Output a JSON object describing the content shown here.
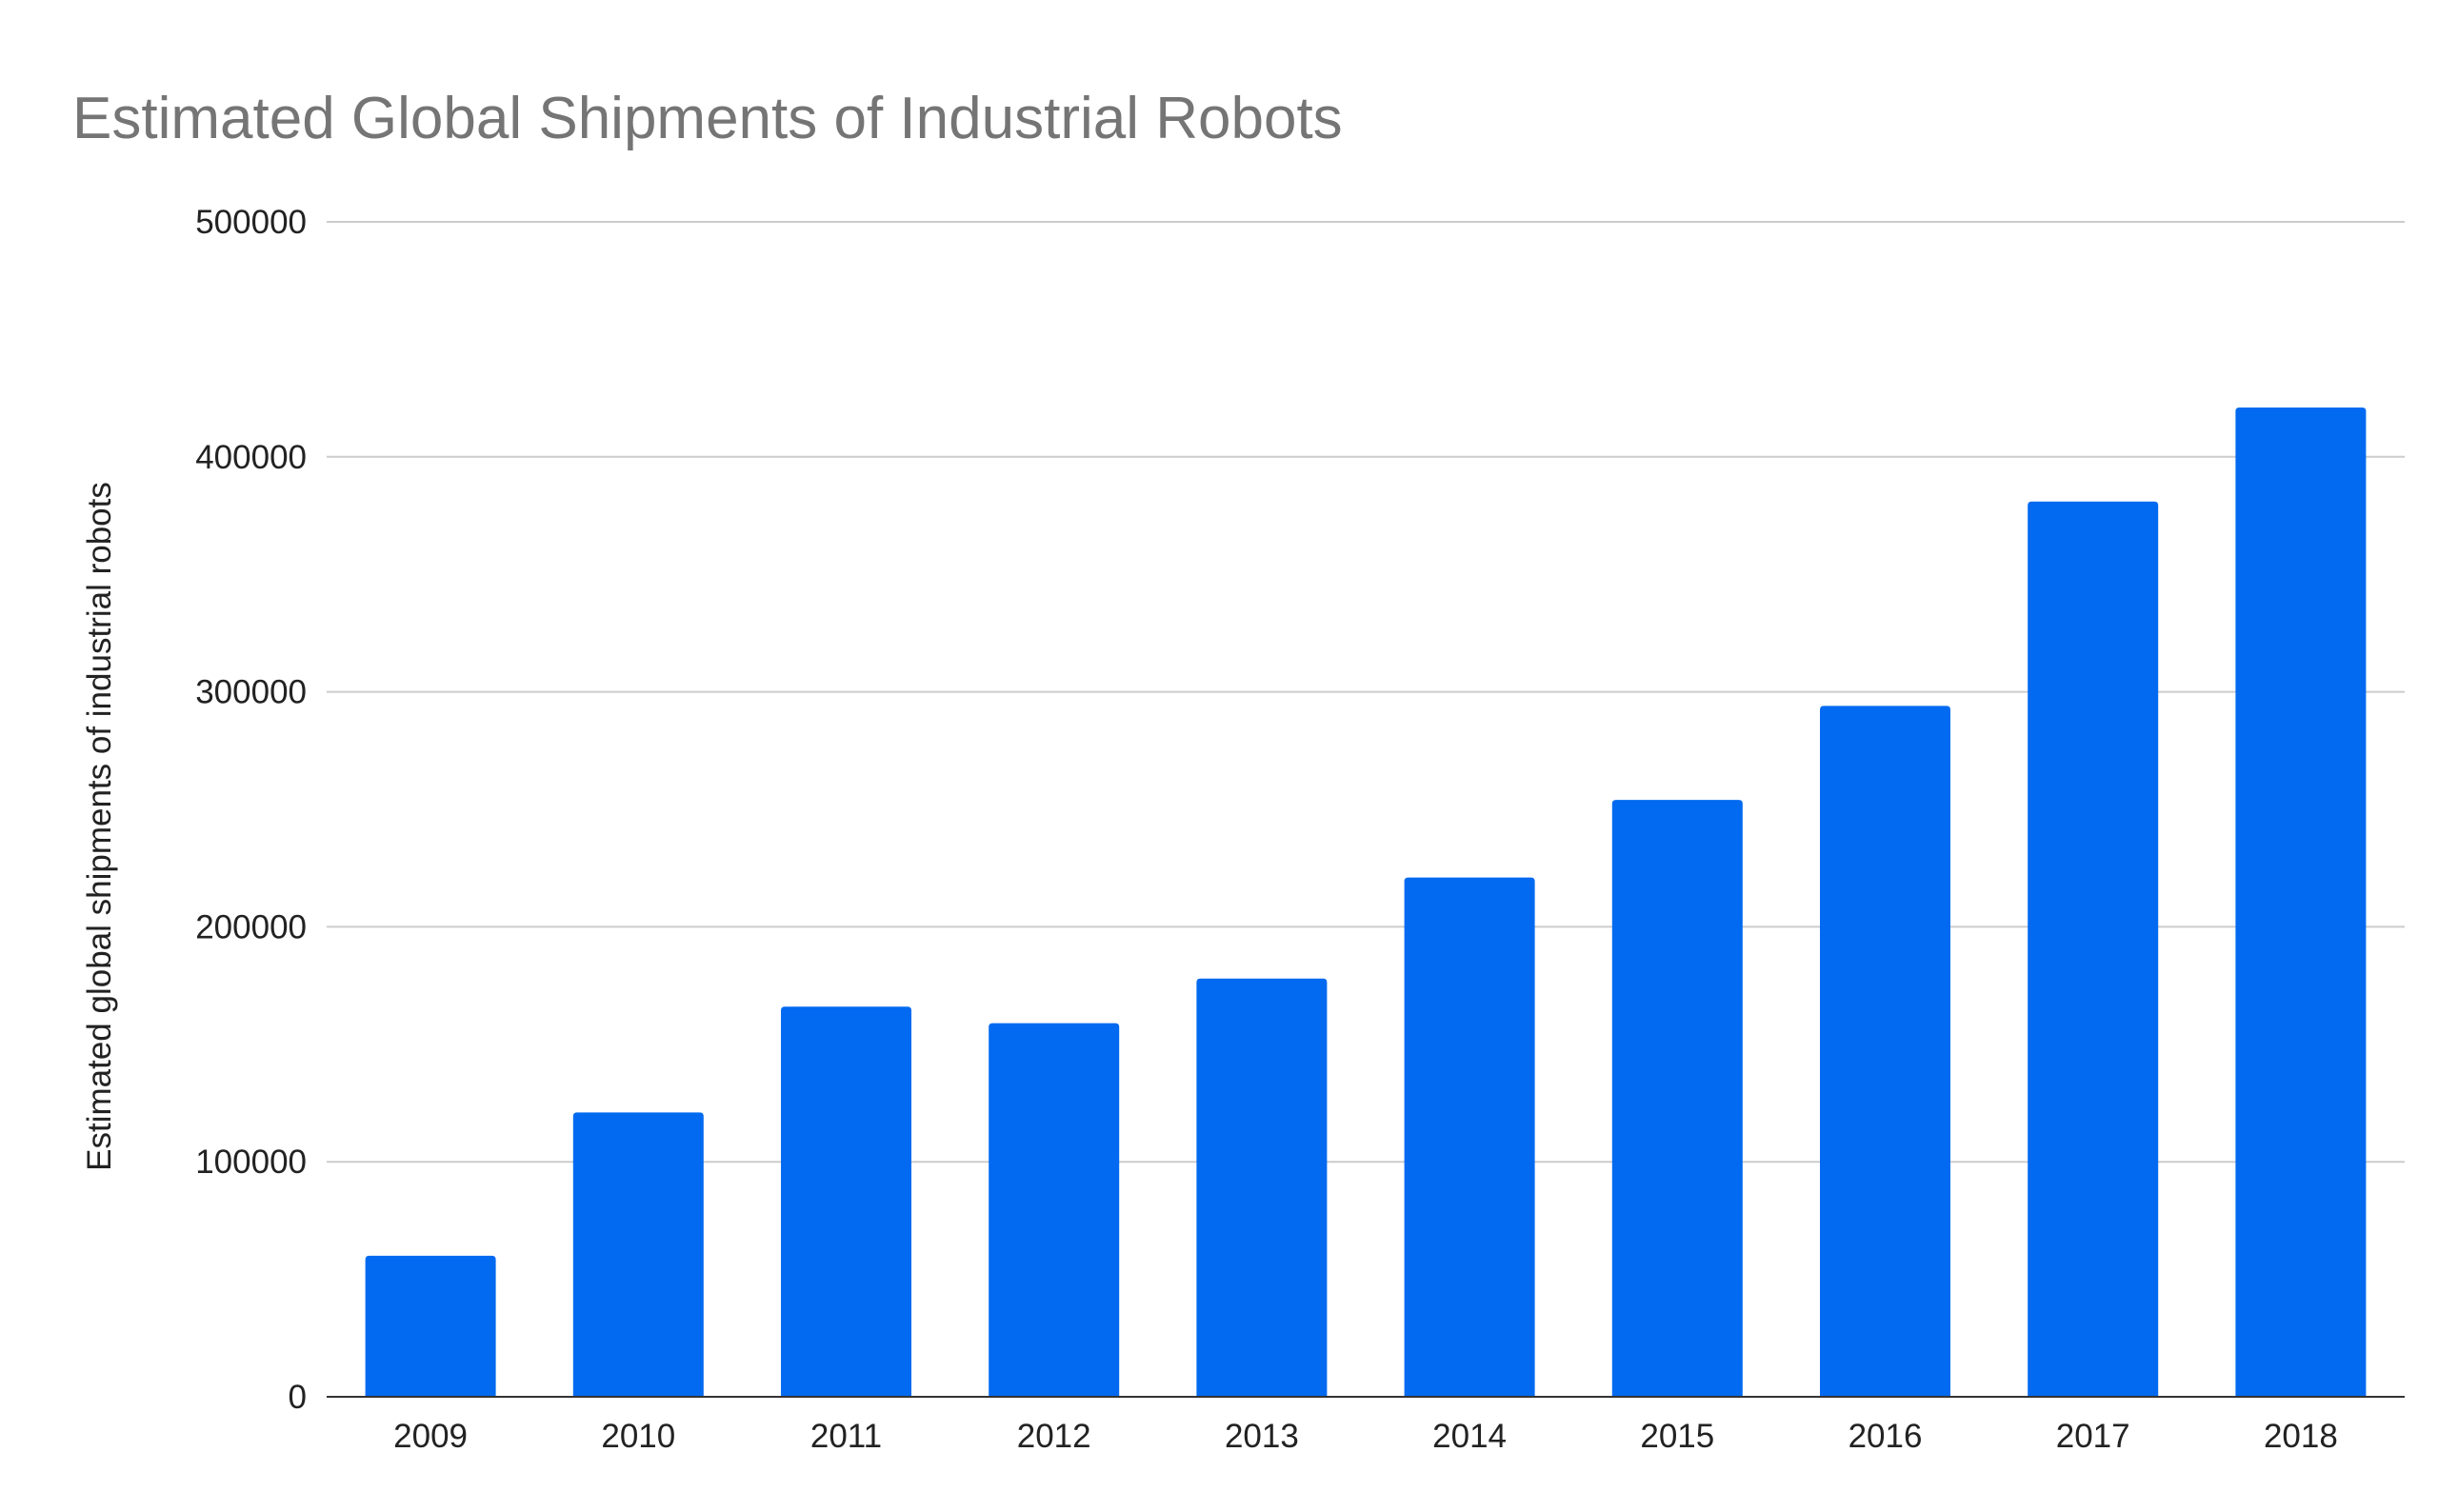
{
  "chart_data": {
    "type": "bar",
    "title": "Estimated Global Shipments of Industrial Robots",
    "xlabel": "",
    "ylabel": "Estimated global shipments of industrial robots",
    "categories": [
      "2009",
      "2010",
      "2011",
      "2012",
      "2013",
      "2014",
      "2015",
      "2016",
      "2017",
      "2018"
    ],
    "values": [
      60000,
      121000,
      166000,
      159000,
      178000,
      221000,
      254000,
      294000,
      381000,
      421000
    ],
    "ylim": [
      0,
      500000
    ],
    "yticks": [
      0,
      100000,
      200000,
      300000,
      400000,
      500000
    ],
    "ytick_labels": [
      "0",
      "100000",
      "200000",
      "300000",
      "400000",
      "500000"
    ],
    "grid": true,
    "legend": "none",
    "colors": {
      "bar": "#026af0",
      "grid": "#cccccc",
      "axis": "#333333",
      "title": "#757575",
      "text": "#222222"
    }
  }
}
